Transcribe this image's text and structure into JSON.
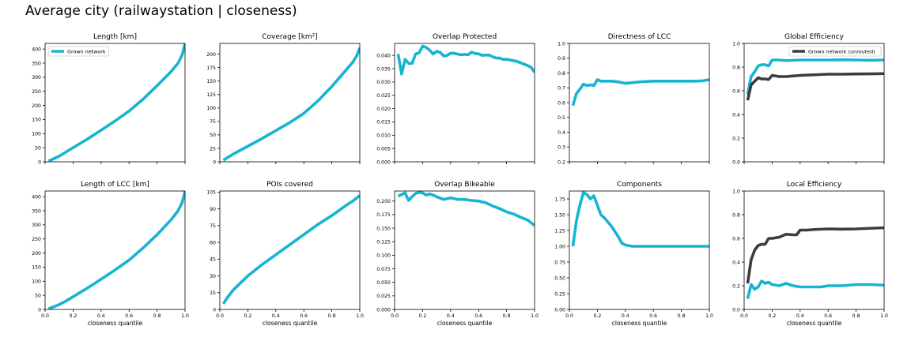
{
  "suptitle": "Average city (railwaystation | closeness)",
  "colors": {
    "grown": "#17b4d2",
    "unrouted": "#3d3d3d"
  },
  "chart_data": [
    {
      "type": "line",
      "title": "Length [km]",
      "xlabel": "",
      "xlim": [
        0,
        1
      ],
      "ylim": [
        0,
        420
      ],
      "yticks": [
        0,
        50,
        100,
        150,
        200,
        250,
        300,
        350,
        400
      ],
      "xticks": [
        0,
        0.2,
        0.4,
        0.6,
        0.8,
        1.0
      ],
      "show_xticklabels": false,
      "legend": {
        "placement": "upper-left",
        "entries": [
          "Grown network"
        ]
      },
      "series": [
        {
          "name": "Grown network",
          "color": "#17b4d2",
          "x": [
            0.025,
            0.05,
            0.1,
            0.15,
            0.2,
            0.3,
            0.4,
            0.5,
            0.6,
            0.7,
            0.8,
            0.9,
            0.95,
            0.98,
            1.0
          ],
          "y": [
            3,
            8,
            20,
            35,
            50,
            80,
            112,
            145,
            180,
            222,
            270,
            320,
            350,
            380,
            420
          ]
        }
      ]
    },
    {
      "type": "line",
      "title": "Coverage [km²]",
      "xlabel": "",
      "xlim": [
        0,
        1
      ],
      "ylim": [
        0,
        220
      ],
      "yticks": [
        0,
        25,
        50,
        75,
        100,
        125,
        150,
        175,
        200
      ],
      "xticks": [
        0,
        0.2,
        0.4,
        0.6,
        0.8,
        1.0
      ],
      "show_xticklabels": false,
      "series": [
        {
          "name": "",
          "color": "#17b4d2",
          "x": [
            0.025,
            0.05,
            0.1,
            0.15,
            0.2,
            0.3,
            0.4,
            0.5,
            0.6,
            0.7,
            0.8,
            0.9,
            0.95,
            0.98,
            1.0
          ],
          "y": [
            3,
            7,
            15,
            22,
            29,
            43,
            58,
            73,
            90,
            113,
            140,
            170,
            185,
            198,
            212
          ]
        }
      ]
    },
    {
      "type": "line",
      "title": "Overlap Protected",
      "xlabel": "",
      "xlim": [
        0,
        1
      ],
      "ylim": [
        0,
        0.0445
      ],
      "yticks": [
        0,
        0.005,
        0.01,
        0.015,
        0.02,
        0.025,
        0.03,
        0.035,
        0.04
      ],
      "ytick_labels": [
        "0.000",
        "0.005",
        "0.010",
        "0.015",
        "0.020",
        "0.025",
        "0.030",
        "0.035",
        "0.040"
      ],
      "xticks": [
        0,
        0.2,
        0.4,
        0.6,
        0.8,
        1.0
      ],
      "show_xticklabels": false,
      "series": [
        {
          "name": "",
          "color": "#17b4d2",
          "x": [
            0.025,
            0.05,
            0.075,
            0.1,
            0.125,
            0.15,
            0.175,
            0.2,
            0.225,
            0.25,
            0.275,
            0.3,
            0.325,
            0.35,
            0.375,
            0.4,
            0.425,
            0.45,
            0.475,
            0.5,
            0.525,
            0.55,
            0.575,
            0.6,
            0.625,
            0.65,
            0.675,
            0.7,
            0.725,
            0.75,
            0.775,
            0.8,
            0.825,
            0.85,
            0.875,
            0.9,
            0.925,
            0.95,
            0.975,
            1.0
          ],
          "y": [
            0.0405,
            0.033,
            0.0385,
            0.037,
            0.037,
            0.0405,
            0.041,
            0.0435,
            0.043,
            0.042,
            0.0405,
            0.0415,
            0.0412,
            0.0398,
            0.04,
            0.0408,
            0.0408,
            0.0405,
            0.0402,
            0.0404,
            0.0402,
            0.0412,
            0.0407,
            0.0406,
            0.04,
            0.0401,
            0.0401,
            0.0395,
            0.039,
            0.039,
            0.0385,
            0.0385,
            0.0383,
            0.038,
            0.0377,
            0.0372,
            0.0367,
            0.0362,
            0.0355,
            0.0337
          ]
        }
      ]
    },
    {
      "type": "line",
      "title": "Directness of LCC",
      "xlabel": "",
      "xlim": [
        0,
        1
      ],
      "ylim": [
        0.2,
        1.0
      ],
      "yticks": [
        0.2,
        0.3,
        0.4,
        0.5,
        0.6,
        0.7,
        0.8,
        0.9,
        1.0
      ],
      "ytick_labels": [
        "0.2",
        "0.3",
        "0.4",
        "0.5",
        "0.6",
        "0.7",
        "0.8",
        "0.9",
        "1.0"
      ],
      "xticks": [
        0,
        0.2,
        0.4,
        0.6,
        0.8,
        1.0
      ],
      "show_xticklabels": false,
      "series": [
        {
          "name": "",
          "color": "#17b4d2",
          "x": [
            0.025,
            0.05,
            0.075,
            0.1,
            0.125,
            0.15,
            0.175,
            0.2,
            0.225,
            0.25,
            0.3,
            0.35,
            0.4,
            0.45,
            0.5,
            0.6,
            0.7,
            0.8,
            0.9,
            0.95,
            1.0
          ],
          "y": [
            0.58,
            0.66,
            0.69,
            0.725,
            0.715,
            0.72,
            0.715,
            0.755,
            0.745,
            0.745,
            0.745,
            0.74,
            0.73,
            0.735,
            0.74,
            0.745,
            0.745,
            0.745,
            0.745,
            0.747,
            0.755
          ]
        }
      ]
    },
    {
      "type": "line",
      "title": "Global Efficiency",
      "xlabel": "",
      "xlim": [
        0,
        1
      ],
      "ylim": [
        0,
        1.0
      ],
      "yticks": [
        0,
        0.2,
        0.4,
        0.6,
        0.8,
        1.0
      ],
      "ytick_labels": [
        "0.0",
        "0.2",
        "0.4",
        "0.6",
        "0.8",
        "1.0"
      ],
      "xticks": [
        0,
        0.2,
        0.4,
        0.6,
        0.8,
        1.0
      ],
      "show_xticklabels": false,
      "legend": {
        "placement": "upper-right",
        "entries": [
          "Grown network (unrouted)"
        ]
      },
      "series": [
        {
          "name": "",
          "color": "#17b4d2",
          "x": [
            0.025,
            0.05,
            0.075,
            0.1,
            0.125,
            0.15,
            0.175,
            0.2,
            0.25,
            0.3,
            0.4,
            0.5,
            0.6,
            0.7,
            0.8,
            0.9,
            1.0
          ],
          "y": [
            0.57,
            0.72,
            0.76,
            0.81,
            0.82,
            0.82,
            0.81,
            0.86,
            0.86,
            0.855,
            0.86,
            0.86,
            0.86,
            0.862,
            0.86,
            0.858,
            0.86
          ]
        },
        {
          "name": "Grown network (unrouted)",
          "color": "#3d3d3d",
          "x": [
            0.025,
            0.05,
            0.075,
            0.1,
            0.125,
            0.15,
            0.175,
            0.2,
            0.25,
            0.3,
            0.35,
            0.4,
            0.5,
            0.6,
            0.7,
            0.8,
            0.9,
            1.0
          ],
          "y": [
            0.52,
            0.65,
            0.68,
            0.71,
            0.7,
            0.7,
            0.695,
            0.73,
            0.72,
            0.72,
            0.725,
            0.73,
            0.735,
            0.74,
            0.74,
            0.742,
            0.743,
            0.745
          ]
        }
      ]
    },
    {
      "type": "line",
      "title": "Length of LCC [km]",
      "xlabel": "closeness quantile",
      "xlim": [
        0,
        1
      ],
      "ylim": [
        0,
        420
      ],
      "yticks": [
        0,
        50,
        100,
        150,
        200,
        250,
        300,
        350,
        400
      ],
      "xticks": [
        0,
        0.2,
        0.4,
        0.6,
        0.8,
        1.0
      ],
      "xtick_labels": [
        "0.0",
        "0.2",
        "0.4",
        "0.6",
        "0.8",
        "1.0"
      ],
      "show_xticklabels": true,
      "series": [
        {
          "name": "",
          "color": "#17b4d2",
          "x": [
            0.025,
            0.05,
            0.1,
            0.15,
            0.2,
            0.3,
            0.4,
            0.5,
            0.6,
            0.7,
            0.8,
            0.9,
            0.95,
            0.98,
            1.0
          ],
          "y": [
            3,
            7,
            17,
            30,
            45,
            75,
            107,
            140,
            175,
            218,
            265,
            318,
            350,
            380,
            420
          ]
        }
      ]
    },
    {
      "type": "line",
      "title": "POIs covered",
      "xlabel": "closeness quantile",
      "xlim": [
        0,
        1
      ],
      "ylim": [
        0,
        106
      ],
      "yticks": [
        0,
        15,
        30,
        45,
        60,
        75,
        90,
        105
      ],
      "xticks": [
        0,
        0.2,
        0.4,
        0.6,
        0.8,
        1.0
      ],
      "xtick_labels": [
        "0.0",
        "0.2",
        "0.4",
        "0.6",
        "0.8",
        "1.0"
      ],
      "show_xticklabels": true,
      "series": [
        {
          "name": "",
          "color": "#17b4d2",
          "x": [
            0.025,
            0.05,
            0.1,
            0.15,
            0.2,
            0.3,
            0.4,
            0.5,
            0.6,
            0.7,
            0.8,
            0.9,
            0.95,
            1.0
          ],
          "y": [
            5,
            10,
            18,
            24,
            30,
            40,
            49,
            58,
            67,
            76,
            84,
            93,
            97,
            102
          ]
        }
      ]
    },
    {
      "type": "line",
      "title": "Overlap Bikeable",
      "xlabel": "closeness quantile",
      "xlim": [
        0,
        1
      ],
      "ylim": [
        0,
        0.2185
      ],
      "yticks": [
        0,
        0.025,
        0.05,
        0.075,
        0.1,
        0.125,
        0.15,
        0.175,
        0.2
      ],
      "ytick_labels": [
        "0.000",
        "0.025",
        "0.050",
        "0.075",
        "0.100",
        "0.125",
        "0.150",
        "0.175",
        "0.200"
      ],
      "xticks": [
        0,
        0.2,
        0.4,
        0.6,
        0.8,
        1.0
      ],
      "xtick_labels": [
        "0.0",
        "0.2",
        "0.4",
        "0.6",
        "0.8",
        "1.0"
      ],
      "show_xticklabels": true,
      "series": [
        {
          "name": "",
          "color": "#17b4d2",
          "x": [
            0.025,
            0.05,
            0.075,
            0.1,
            0.125,
            0.15,
            0.175,
            0.2,
            0.225,
            0.25,
            0.275,
            0.3,
            0.35,
            0.4,
            0.45,
            0.5,
            0.55,
            0.6,
            0.65,
            0.7,
            0.75,
            0.8,
            0.85,
            0.9,
            0.95,
            1.0
          ],
          "y": [
            0.209,
            0.212,
            0.215,
            0.201,
            0.208,
            0.214,
            0.216,
            0.215,
            0.211,
            0.213,
            0.211,
            0.208,
            0.203,
            0.206,
            0.203,
            0.203,
            0.201,
            0.2,
            0.197,
            0.191,
            0.186,
            0.18,
            0.176,
            0.17,
            0.165,
            0.155
          ]
        }
      ]
    },
    {
      "type": "line",
      "title": "Components",
      "xlabel": "closeness quantile",
      "xlim": [
        0,
        1
      ],
      "ylim": [
        0,
        1.875
      ],
      "yticks": [
        0,
        0.25,
        0.5,
        0.75,
        1.0,
        1.25,
        1.5,
        1.75
      ],
      "ytick_labels": [
        "0.00",
        "0.25",
        "0.50",
        "0.75",
        "1.00",
        "1.25",
        "1.50",
        "1.75"
      ],
      "xticks": [
        0,
        0.2,
        0.4,
        0.6,
        0.8,
        1.0
      ],
      "xtick_labels": [
        "0.0",
        "0.2",
        "0.4",
        "0.6",
        "0.8",
        "1.0"
      ],
      "show_xticklabels": true,
      "series": [
        {
          "name": "",
          "color": "#17b4d2",
          "x": [
            0.025,
            0.05,
            0.075,
            0.1,
            0.125,
            0.15,
            0.175,
            0.2,
            0.225,
            0.25,
            0.3,
            0.35,
            0.375,
            0.4,
            0.45,
            0.5,
            0.6,
            0.7,
            0.8,
            0.9,
            1.0
          ],
          "y": [
            1.0,
            1.4,
            1.65,
            1.85,
            1.82,
            1.75,
            1.8,
            1.65,
            1.5,
            1.45,
            1.32,
            1.15,
            1.05,
            1.02,
            1.0,
            1.0,
            1.0,
            1.0,
            1.0,
            1.0,
            1.0
          ]
        }
      ]
    },
    {
      "type": "line",
      "title": "Local Efficiency",
      "xlabel": "closeness quantile",
      "xlim": [
        0,
        1
      ],
      "ylim": [
        0,
        1.0
      ],
      "yticks": [
        0,
        0.2,
        0.4,
        0.6,
        0.8,
        1.0
      ],
      "ytick_labels": [
        "0.0",
        "0.2",
        "0.4",
        "0.6",
        "0.8",
        "1.0"
      ],
      "xticks": [
        0,
        0.2,
        0.4,
        0.6,
        0.8,
        1.0
      ],
      "xtick_labels": [
        "0.0",
        "0.2",
        "0.4",
        "0.6",
        "0.8",
        "1.0"
      ],
      "show_xticklabels": true,
      "series": [
        {
          "name": "",
          "color": "#17b4d2",
          "x": [
            0.025,
            0.05,
            0.075,
            0.1,
            0.125,
            0.15,
            0.175,
            0.2,
            0.25,
            0.3,
            0.35,
            0.4,
            0.45,
            0.5,
            0.55,
            0.6,
            0.7,
            0.8,
            0.9,
            1.0
          ],
          "y": [
            0.09,
            0.21,
            0.17,
            0.19,
            0.24,
            0.22,
            0.23,
            0.21,
            0.2,
            0.22,
            0.2,
            0.19,
            0.19,
            0.19,
            0.19,
            0.2,
            0.2,
            0.21,
            0.21,
            0.205
          ]
        },
        {
          "name": "",
          "color": "#3d3d3d",
          "x": [
            0.025,
            0.05,
            0.075,
            0.1,
            0.125,
            0.15,
            0.175,
            0.2,
            0.25,
            0.3,
            0.35,
            0.375,
            0.4,
            0.45,
            0.5,
            0.6,
            0.7,
            0.8,
            0.9,
            1.0
          ],
          "y": [
            0.22,
            0.42,
            0.5,
            0.54,
            0.55,
            0.55,
            0.6,
            0.6,
            0.61,
            0.635,
            0.63,
            0.63,
            0.67,
            0.67,
            0.675,
            0.68,
            0.678,
            0.68,
            0.685,
            0.69
          ]
        }
      ]
    }
  ]
}
